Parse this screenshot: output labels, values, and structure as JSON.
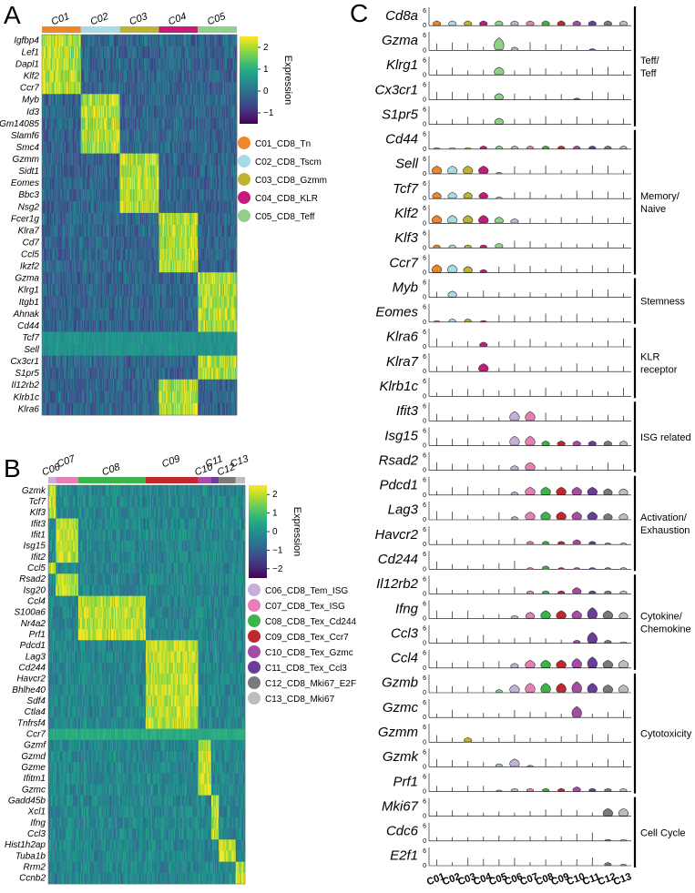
{
  "figure": {
    "panel_a": "A",
    "panel_b": "B",
    "panel_c": "C"
  },
  "chart_data": [
    {
      "type": "heatmap",
      "panel": "A",
      "column_groups": [
        {
          "label": "C01",
          "color": "#f0862a",
          "cells": 55
        },
        {
          "label": "C02",
          "color": "#a7dbe6",
          "cells": 55
        },
        {
          "label": "C03",
          "color": "#bdb532",
          "cells": 55
        },
        {
          "label": "C04",
          "color": "#c51b7d",
          "cells": 55
        },
        {
          "label": "C05",
          "color": "#8fd18a",
          "cells": 55
        }
      ],
      "genes": [
        "Igfbp4",
        "Lef1",
        "Dapl1",
        "Klf2",
        "Ccr7",
        "Myb",
        "Id3",
        "Gm14085",
        "Slamf6",
        "Smc4",
        "Gzmm",
        "Sidt1",
        "Eomes",
        "Bbc3",
        "Nsg2",
        "Fcer1g",
        "Klra7",
        "Cd7",
        "Ccl5",
        "Ikzf2",
        "Gzma",
        "Klrg1",
        "Itgb1",
        "Ahnak",
        "Cd44",
        "Tcf7",
        "Sell",
        "Cx3cr1",
        "S1pr5",
        "Il12rb2",
        "Klrb1c",
        "Klra6"
      ],
      "gene_cluster": [
        0,
        0,
        0,
        0,
        0,
        1,
        1,
        1,
        1,
        1,
        2,
        2,
        2,
        2,
        2,
        3,
        3,
        3,
        3,
        3,
        4,
        4,
        4,
        4,
        4,
        -1,
        -1,
        4,
        4,
        3,
        3,
        3
      ],
      "colorbar": {
        "title": "Expression",
        "ticks": [
          2,
          1,
          0,
          -1
        ],
        "range": [
          -1.5,
          2.5
        ]
      },
      "legend": [
        {
          "label": "C01_CD8_Tn",
          "color": "#f0862a"
        },
        {
          "label": "C02_CD8_Tscm",
          "color": "#a7dbe6"
        },
        {
          "label": "C03_CD8_Gzmm",
          "color": "#bdb532"
        },
        {
          "label": "C04_CD8_KLR",
          "color": "#c51b7d"
        },
        {
          "label": "C05_CD8_Teff",
          "color": "#8fd18a"
        }
      ]
    },
    {
      "type": "heatmap",
      "panel": "B",
      "column_groups": [
        {
          "label": "C06",
          "color": "#c5b0d9",
          "cells": 8
        },
        {
          "label": "C07",
          "color": "#e67fb5",
          "cells": 24
        },
        {
          "label": "C08",
          "color": "#3ab54a",
          "cells": 72
        },
        {
          "label": "C09",
          "color": "#c0282d",
          "cells": 56
        },
        {
          "label": "C10",
          "color": "#a64ca6",
          "cells": 14
        },
        {
          "label": "C11",
          "color": "#6a3d9a",
          "cells": 8
        },
        {
          "label": "C12",
          "color": "#7a7a7a",
          "cells": 18
        },
        {
          "label": "C13",
          "color": "#bdbdbd",
          "cells": 10
        }
      ],
      "genes": [
        "Gzmk",
        "Tcf7",
        "Klf3",
        "Ifit3",
        "Ifit1",
        "Isg15",
        "Ifit2",
        "Ccl5",
        "Rsad2",
        "Isg20",
        "Ccl4",
        "S100a6",
        "Nr4a2",
        "Prf1",
        "Pdcd1",
        "Lag3",
        "Cd244",
        "Havcr2",
        "Bhlhe40",
        "Sdf4",
        "Ctla4",
        "Tnfrsf4",
        "Ccr7",
        "Gzmf",
        "Gzmd",
        "Gzme",
        "Ifitm1",
        "Gzmc",
        "Gadd45b",
        "Xcl1",
        "Ifng",
        "Ccl3",
        "Hist1h2ap",
        "Tuba1b",
        "Rrm2",
        "Ccnb2"
      ],
      "gene_cluster": [
        0,
        0,
        0,
        1,
        1,
        1,
        1,
        0,
        1,
        1,
        2,
        2,
        2,
        2,
        3,
        3,
        3,
        3,
        3,
        3,
        3,
        3,
        -1,
        4,
        4,
        4,
        4,
        4,
        5,
        5,
        5,
        5,
        6,
        6,
        7,
        7
      ],
      "colorbar": {
        "title": "Expression",
        "ticks": [
          2,
          1,
          0,
          -1,
          -2
        ],
        "range": [
          -2.5,
          2.5
        ]
      },
      "legend": [
        {
          "label": "C06_CD8_Tem_ISG",
          "color": "#c5b0d9"
        },
        {
          "label": "C07_CD8_Tex_ISG",
          "color": "#e67fb5"
        },
        {
          "label": "C08_CD8_Tex_Cd244",
          "color": "#3ab54a"
        },
        {
          "label": "C09_CD8_Tex_Ccr7",
          "color": "#c0282d"
        },
        {
          "label": "C10_CD8_Tex_Gzmc",
          "color": "#a64ca6"
        },
        {
          "label": "C11_CD8_Tex_Ccl3",
          "color": "#6a3d9a"
        },
        {
          "label": "C12_CD8_Mki67_E2F",
          "color": "#7a7a7a"
        },
        {
          "label": "C13_CD8_Mki67",
          "color": "#bdbdbd"
        }
      ]
    },
    {
      "type": "violin",
      "panel": "C",
      "clusters": [
        "C01",
        "C02",
        "C03",
        "C04",
        "C05",
        "C06",
        "C07",
        "C08",
        "C09",
        "C10",
        "C11",
        "C12",
        "C13"
      ],
      "colors": [
        "#f0862a",
        "#a7dbe6",
        "#bdb532",
        "#c51b7d",
        "#8fd18a",
        "#c5b0d9",
        "#e67fb5",
        "#3ab54a",
        "#c0282d",
        "#a64ca6",
        "#6a3d9a",
        "#7a7a7a",
        "#bdbdbd"
      ],
      "yticks": [
        "6",
        "0"
      ],
      "genes": [
        "Cd8a",
        "Gzma",
        "Klrg1",
        "Cx3cr1",
        "S1pr5",
        "Cd44",
        "Sell",
        "Tcf7",
        "Klf2",
        "Klf3",
        "Ccr7",
        "Myb",
        "Eomes",
        "Klra6",
        "Klra7",
        "Klrb1c",
        "Ifit3",
        "Isg15",
        "Rsad2",
        "Pdcd1",
        "Lag3",
        "Havcr2",
        "Cd244",
        "Il12rb2",
        "Ifng",
        "Ccl3",
        "Ccl4",
        "Gzmb",
        "Gzmc",
        "Gzmm",
        "Gzmk",
        "Prf1",
        "Mki67",
        "Cdc6",
        "E2f1"
      ],
      "violin_levels": [
        [
          0.3,
          0.3,
          0.3,
          0.3,
          0.3,
          0.3,
          0.3,
          0.3,
          0.3,
          0.3,
          0.3,
          0.3,
          0.3
        ],
        [
          0,
          0,
          0,
          0,
          0.8,
          0.2,
          0,
          0,
          0,
          0,
          0.1,
          0,
          0
        ],
        [
          0,
          0,
          0,
          0,
          0.5,
          0,
          0,
          0,
          0,
          0,
          0,
          0,
          0
        ],
        [
          0,
          0,
          0,
          0,
          0.4,
          0,
          0,
          0,
          0,
          0.1,
          0,
          0,
          0
        ],
        [
          0,
          0,
          0,
          0,
          0.4,
          0,
          0,
          0,
          0,
          0,
          0,
          0,
          0
        ],
        [
          0.1,
          0.1,
          0.1,
          0.2,
          0.2,
          0.2,
          0.2,
          0.2,
          0.2,
          0.2,
          0.2,
          0.2,
          0.2
        ],
        [
          0.5,
          0.5,
          0.5,
          0.5,
          0.1,
          0,
          0,
          0,
          0,
          0,
          0,
          0,
          0
        ],
        [
          0.4,
          0.4,
          0.4,
          0.4,
          0.1,
          0,
          0,
          0,
          0,
          0,
          0,
          0,
          0
        ],
        [
          0.5,
          0.5,
          0.5,
          0.5,
          0.4,
          0.3,
          0,
          0,
          0,
          0,
          0,
          0,
          0
        ],
        [
          0.2,
          0.2,
          0.2,
          0.2,
          0.3,
          0,
          0,
          0,
          0,
          0,
          0,
          0,
          0
        ],
        [
          0.5,
          0.5,
          0.4,
          0.2,
          0,
          0,
          0,
          0,
          0,
          0,
          0,
          0,
          0
        ],
        [
          0,
          0.4,
          0,
          0,
          0,
          0,
          0,
          0,
          0,
          0,
          0,
          0,
          0
        ],
        [
          0.1,
          0.2,
          0.2,
          0.1,
          0,
          0,
          0,
          0,
          0,
          0,
          0,
          0,
          0
        ],
        [
          0,
          0,
          0,
          0.3,
          0,
          0,
          0,
          0,
          0,
          0,
          0,
          0,
          0
        ],
        [
          0,
          0,
          0,
          0.5,
          0,
          0,
          0,
          0,
          0,
          0,
          0,
          0,
          0
        ],
        [
          0,
          0,
          0,
          0,
          0,
          0,
          0,
          0,
          0,
          0,
          0,
          0,
          0
        ],
        [
          0,
          0,
          0,
          0,
          0,
          0.6,
          0.6,
          0,
          0,
          0,
          0,
          0,
          0
        ],
        [
          0,
          0,
          0,
          0,
          0,
          0.6,
          0.6,
          0.3,
          0.3,
          0.3,
          0.3,
          0.3,
          0.3
        ],
        [
          0,
          0,
          0,
          0,
          0,
          0.3,
          0.5,
          0,
          0,
          0,
          0,
          0,
          0
        ],
        [
          0,
          0,
          0,
          0,
          0,
          0.2,
          0.5,
          0.5,
          0.5,
          0.5,
          0.5,
          0.4,
          0.4
        ],
        [
          0,
          0,
          0,
          0,
          0,
          0.2,
          0.5,
          0.5,
          0.5,
          0.5,
          0.5,
          0.4,
          0.4
        ],
        [
          0,
          0,
          0,
          0,
          0,
          0,
          0.2,
          0.2,
          0.2,
          0.3,
          0.2,
          0.1,
          0.1
        ],
        [
          0,
          0,
          0,
          0,
          0,
          0,
          0.1,
          0.2,
          0.1,
          0.1,
          0.1,
          0.1,
          0.1
        ],
        [
          0,
          0,
          0,
          0,
          0,
          0,
          0.2,
          0.2,
          0.2,
          0.4,
          0.2,
          0.2,
          0.2
        ],
        [
          0,
          0,
          0,
          0,
          0,
          0.2,
          0.4,
          0.5,
          0.5,
          0.5,
          0.7,
          0.5,
          0.4
        ],
        [
          0,
          0,
          0,
          0,
          0,
          0,
          0,
          0,
          0,
          0.2,
          0.7,
          0.2,
          0.1
        ],
        [
          0,
          0,
          0,
          0,
          0,
          0.3,
          0.5,
          0.5,
          0.5,
          0.6,
          0.7,
          0.5,
          0.5
        ],
        [
          0,
          0,
          0,
          0,
          0.2,
          0.5,
          0.6,
          0.6,
          0.6,
          0.7,
          0.6,
          0.5,
          0.5
        ],
        [
          0,
          0,
          0,
          0,
          0,
          0,
          0,
          0,
          0,
          0.7,
          0,
          0,
          0
        ],
        [
          0,
          0,
          0.3,
          0,
          0,
          0,
          0,
          0,
          0,
          0,
          0,
          0,
          0
        ],
        [
          0,
          0,
          0,
          0,
          0.2,
          0.5,
          0.1,
          0,
          0,
          0,
          0,
          0,
          0
        ],
        [
          0,
          0,
          0,
          0,
          0.1,
          0.2,
          0.2,
          0.2,
          0.2,
          0.3,
          0.2,
          0.2,
          0.2
        ],
        [
          0,
          0,
          0,
          0,
          0,
          0,
          0,
          0,
          0,
          0,
          0,
          0.5,
          0.5
        ],
        [
          0,
          0,
          0,
          0,
          0,
          0,
          0,
          0,
          0,
          0,
          0,
          0.1,
          0.1
        ],
        [
          0,
          0,
          0,
          0,
          0,
          0,
          0,
          0,
          0,
          0,
          0,
          0.2,
          0.1
        ]
      ],
      "categories": [
        {
          "label": "Teff/\nTeff",
          "from": 0,
          "to": 4
        },
        {
          "label": "Memory/\nNaive",
          "from": 5,
          "to": 10
        },
        {
          "label": "Stemness",
          "from": 11,
          "to": 12
        },
        {
          "label": "KLR\nreceptor",
          "from": 13,
          "to": 15
        },
        {
          "label": "ISG related",
          "from": 16,
          "to": 18
        },
        {
          "label": "Activation/\nExhaustion",
          "from": 19,
          "to": 22
        },
        {
          "label": "Cytokine/\nChemokine",
          "from": 23,
          "to": 26
        },
        {
          "label": "Cytotoxicity",
          "from": 27,
          "to": 31
        },
        {
          "label": "Cell Cycle",
          "from": 32,
          "to": 34
        }
      ]
    }
  ]
}
